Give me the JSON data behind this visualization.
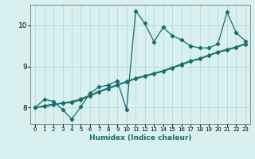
{
  "x": [
    0,
    1,
    2,
    3,
    4,
    5,
    6,
    7,
    8,
    9,
    10,
    11,
    12,
    13,
    14,
    15,
    16,
    17,
    18,
    19,
    20,
    21,
    22,
    23
  ],
  "line1": [
    8.0,
    8.2,
    8.15,
    7.95,
    7.72,
    8.02,
    8.35,
    8.5,
    8.55,
    8.65,
    7.95,
    10.35,
    10.05,
    9.6,
    9.95,
    9.75,
    9.65,
    9.5,
    9.45,
    9.45,
    9.55,
    10.32,
    9.82,
    9.62
  ],
  "line2": [
    8.0,
    8.05,
    8.08,
    8.1,
    8.12,
    8.18,
    8.28,
    8.38,
    8.46,
    8.54,
    8.62,
    8.7,
    8.76,
    8.82,
    8.88,
    8.96,
    9.04,
    9.12,
    9.18,
    9.26,
    9.34,
    9.4,
    9.46,
    9.54
  ],
  "line3": [
    8.0,
    8.04,
    8.08,
    8.12,
    8.15,
    8.22,
    8.3,
    8.4,
    8.48,
    8.56,
    8.64,
    8.72,
    8.78,
    8.84,
    8.9,
    8.98,
    9.06,
    9.14,
    9.2,
    9.28,
    9.36,
    9.42,
    9.48,
    9.56
  ],
  "line4": [
    8.0,
    8.02,
    8.06,
    8.1,
    8.13,
    8.2,
    8.28,
    8.38,
    8.46,
    8.54,
    8.62,
    8.7,
    8.76,
    8.82,
    8.88,
    8.96,
    9.04,
    9.12,
    9.18,
    9.26,
    9.34,
    9.4,
    9.46,
    9.54
  ],
  "color": "#1a6b6b",
  "bg_color": "#d8f0f0",
  "grid_color": "#b0d4d4",
  "xlabel": "Humidex (Indice chaleur)",
  "ylim": [
    7.6,
    10.5
  ],
  "xlim": [
    -0.5,
    23.5
  ],
  "yticks": [
    8,
    9,
    10
  ],
  "xticks": [
    0,
    1,
    2,
    3,
    4,
    5,
    6,
    7,
    8,
    9,
    10,
    11,
    12,
    13,
    14,
    15,
    16,
    17,
    18,
    19,
    20,
    21,
    22,
    23
  ]
}
